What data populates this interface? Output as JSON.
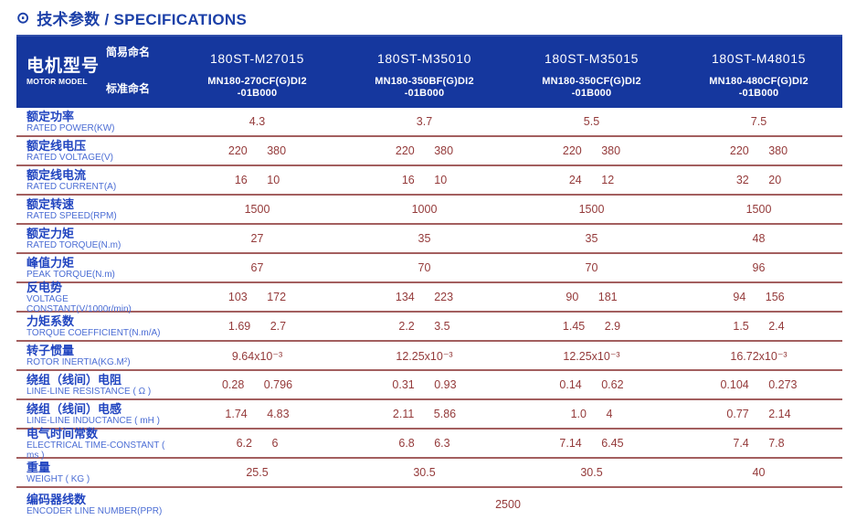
{
  "title": {
    "icon": "⊙",
    "text": "技术参数 / SPECIFICATIONS"
  },
  "colors": {
    "header_bg": "#15379e",
    "title_text": "#1c40a8",
    "label_cn": "#2145c0",
    "label_en": "#4a6cd4",
    "value_text": "#943a3a",
    "divider": "#a35f5f"
  },
  "header": {
    "motor_model_cn": "电机型号",
    "motor_model_en": "MOTOR MODEL",
    "simple_name_label": "简易命名",
    "standard_name_label": "标准命名",
    "columns": [
      {
        "simple": "180ST-M27015",
        "standard_line1": "MN180-270CF(G)DI2",
        "standard_line2": "-01B000"
      },
      {
        "simple": "180ST-M35010",
        "standard_line1": "MN180-350BF(G)DI2",
        "standard_line2": "-01B000"
      },
      {
        "simple": "180ST-M35015",
        "standard_line1": "MN180-350CF(G)DI2",
        "standard_line2": "-01B000"
      },
      {
        "simple": "180ST-M48015",
        "standard_line1": "MN180-480CF(G)DI2",
        "standard_line2": "-01B000"
      }
    ]
  },
  "rows": [
    {
      "cn": "额定功率",
      "en": "RATED POWER(KW)",
      "cells": [
        [
          "4.3"
        ],
        [
          "3.7"
        ],
        [
          "5.5"
        ],
        [
          "7.5"
        ]
      ]
    },
    {
      "cn": "额定线电压",
      "en": "RATED VOLTAGE(V)",
      "cells": [
        [
          "220",
          "380"
        ],
        [
          "220",
          "380"
        ],
        [
          "220",
          "380"
        ],
        [
          "220",
          "380"
        ]
      ]
    },
    {
      "cn": "额定线电流",
      "en": "RATED CURRENT(A)",
      "cells": [
        [
          "16",
          "10"
        ],
        [
          "16",
          "10"
        ],
        [
          "24",
          "12"
        ],
        [
          "32",
          "20"
        ]
      ]
    },
    {
      "cn": "额定转速",
      "en": "RATED SPEED(RPM)",
      "cells": [
        [
          "1500"
        ],
        [
          "1000"
        ],
        [
          "1500"
        ],
        [
          "1500"
        ]
      ]
    },
    {
      "cn": "额定力矩",
      "en": "RATED TORQUE(N.m)",
      "cells": [
        [
          "27"
        ],
        [
          "35"
        ],
        [
          "35"
        ],
        [
          "48"
        ]
      ]
    },
    {
      "cn": "峰值力矩",
      "en": "PEAK TORQUE(N.m)",
      "cells": [
        [
          "67"
        ],
        [
          "70"
        ],
        [
          "70"
        ],
        [
          "96"
        ]
      ]
    },
    {
      "cn": "反电势",
      "en": "VOLTAGE CONSTANT(V/1000r/min)",
      "cells": [
        [
          "103",
          "172"
        ],
        [
          "134",
          "223"
        ],
        [
          "90",
          "181"
        ],
        [
          "94",
          "156"
        ]
      ]
    },
    {
      "cn": "力矩系数",
      "en": "TORQUE COEFFICIENT(N.m/A)",
      "cells": [
        [
          "1.69",
          "2.7"
        ],
        [
          "2.2",
          "3.5"
        ],
        [
          "1.45",
          "2.9"
        ],
        [
          "1.5",
          "2.4"
        ]
      ]
    },
    {
      "cn": "转子惯量",
      "en": "ROTOR INERTIA(KG.M²)",
      "cells": [
        [
          "9.64x10⁻³"
        ],
        [
          "12.25x10⁻³"
        ],
        [
          "12.25x10⁻³"
        ],
        [
          "16.72x10⁻³"
        ]
      ]
    },
    {
      "cn": "绕组（线间）电阻",
      "en": "LINE-LINE RESISTANCE ( Ω )",
      "cells": [
        [
          "0.28",
          "0.796"
        ],
        [
          "0.31",
          "0.93"
        ],
        [
          "0.14",
          "0.62"
        ],
        [
          "0.104",
          "0.273"
        ]
      ]
    },
    {
      "cn": "绕组（线间）电感",
      "en": "LINE-LINE INDUCTANCE ( mH )",
      "cells": [
        [
          "1.74",
          "4.83"
        ],
        [
          "2.11",
          "5.86"
        ],
        [
          "1.0",
          "4"
        ],
        [
          "0.77",
          "2.14"
        ]
      ]
    },
    {
      "cn": "电气时间常数",
      "en": "ELECTRICAL TIME-CONSTANT ( ms )",
      "cells": [
        [
          "6.2",
          "6"
        ],
        [
          "6.8",
          "6.3"
        ],
        [
          "7.14",
          "6.45"
        ],
        [
          "7.4",
          "7.8"
        ]
      ]
    },
    {
      "cn": "重量",
      "en": "WEIGHT ( KG )",
      "cells": [
        [
          "25.5"
        ],
        [
          "30.5"
        ],
        [
          "30.5"
        ],
        [
          "40"
        ]
      ]
    }
  ],
  "encoder_row": {
    "cn": "编码器线数",
    "en": "ENCODER LINE NUMBER(PPR)",
    "value": "2500"
  }
}
